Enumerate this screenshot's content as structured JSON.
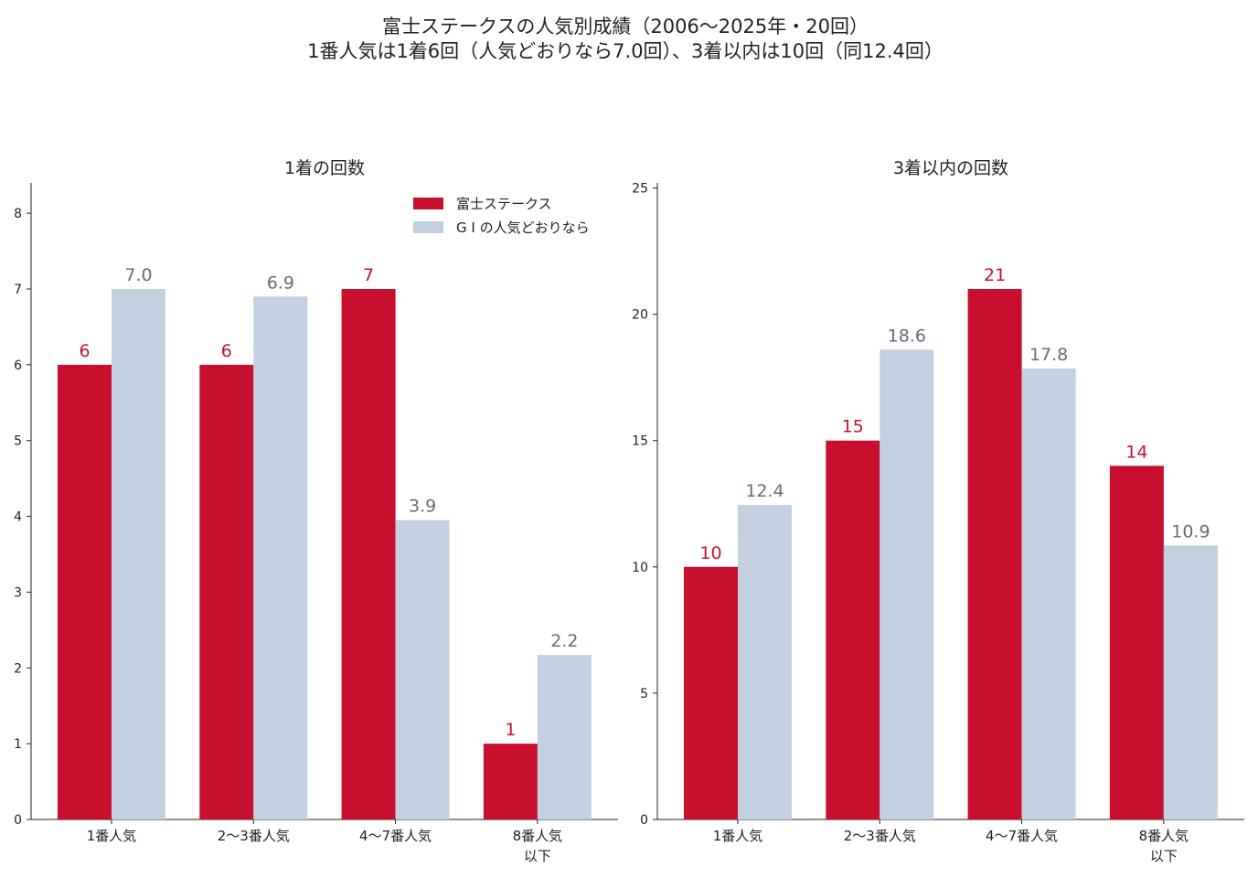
{
  "figure": {
    "title_line1": "富士ステークスの人気別成績（2006〜2025年・20回）",
    "title_line2": "1番人気は1着6回（人気どおりなら7.0回）、3着以内は10回（同12.4回）"
  },
  "colors": {
    "fuji": "#c8102e",
    "g1": "#c3d0e0",
    "g1_label": "#666d78",
    "axis": "#222222"
  },
  "legend": {
    "placement": "top-right of left panel",
    "items": [
      "富士ステークス",
      "G I の人気どおりなら"
    ]
  },
  "chart_data": [
    {
      "type": "bar",
      "title": "1着の回数",
      "categories": [
        "1番人気",
        "2〜3番人気",
        "4〜7番人気",
        "8番人気\n以下"
      ],
      "series": [
        {
          "name": "富士ステークス",
          "values": [
            6,
            6,
            7,
            1
          ],
          "labels": [
            "6",
            "6",
            "7",
            "1"
          ]
        },
        {
          "name": "G I の人気どおりなら",
          "values": [
            7.0,
            6.9,
            3.95,
            2.17
          ],
          "labels": [
            "7.0",
            "6.9",
            "3.9",
            "2.2"
          ]
        }
      ],
      "ylim": [
        0,
        8.4
      ],
      "yticks": [
        0,
        1,
        2,
        3,
        4,
        5,
        6,
        7,
        8
      ],
      "xlabel": "",
      "ylabel": "",
      "grid": false
    },
    {
      "type": "bar",
      "title": "3着以内の回数",
      "categories": [
        "1番人気",
        "2〜3番人気",
        "4〜7番人気",
        "8番人気\n以下"
      ],
      "series": [
        {
          "name": "富士ステークス",
          "values": [
            10,
            15,
            21,
            14
          ],
          "labels": [
            "10",
            "15",
            "21",
            "14"
          ]
        },
        {
          "name": "G I の人気どおりなら",
          "values": [
            12.45,
            18.6,
            17.85,
            10.85
          ],
          "labels": [
            "12.4",
            "18.6",
            "17.8",
            "10.9"
          ]
        }
      ],
      "ylim": [
        0,
        25.2
      ],
      "yticks": [
        0,
        5,
        10,
        15,
        20,
        25
      ],
      "xlabel": "",
      "ylabel": "",
      "grid": false
    }
  ]
}
